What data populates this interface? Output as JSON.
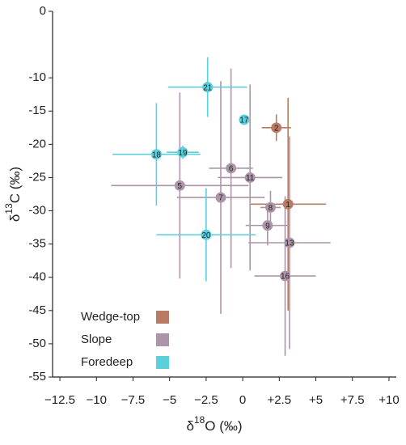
{
  "chart_data": {
    "type": "scatter",
    "xlabel": {
      "symbol": "δ",
      "superscript": "18",
      "text": "O (‰)"
    },
    "ylabel": {
      "symbol": "δ",
      "superscript": "13",
      "text": "C (‰)"
    },
    "xlim": [
      -13,
      10.5
    ],
    "ylim": [
      -55,
      0
    ],
    "xticks": [
      {
        "value": -12.5,
        "label": "−12.5"
      },
      {
        "value": -10,
        "label": "−10"
      },
      {
        "value": -7.5,
        "label": "−7.5"
      },
      {
        "value": -5,
        "label": "−5"
      },
      {
        "value": -2.5,
        "label": "−2.5"
      },
      0,
      {
        "value": 2.5,
        "label": "+2.5"
      },
      {
        "value": 5,
        "label": "+5"
      },
      {
        "value": 7.5,
        "label": "+7.5"
      },
      {
        "value": 10,
        "label": "+10"
      }
    ],
    "yticks": [
      0,
      -10,
      -15,
      -20,
      -25,
      -30,
      -35,
      -40,
      -45,
      -50,
      -55
    ],
    "legend": "lower left",
    "series": [
      {
        "name": "Wedge-top",
        "color": "#b97b64",
        "labels": [
          "1",
          "2"
        ],
        "x": [
          3.1,
          2.3
        ],
        "y": [
          -29.0,
          -17.5
        ],
        "xerr": [
          2.6,
          1.0
        ],
        "yerr": [
          16,
          2
        ]
      },
      {
        "name": "Slope",
        "color": "#ad95a9",
        "labels": [
          "6",
          "11",
          "5",
          "7",
          "8",
          "9",
          "13",
          "16"
        ],
        "x": [
          -0.8,
          0.5,
          -4.3,
          -1.5,
          1.9,
          1.7,
          3.2,
          2.9
        ],
        "y": [
          -23.6,
          -25.0,
          -26.2,
          -28.0,
          -29.5,
          -32.2,
          -34.8,
          -39.8
        ],
        "xerr": [
          1.5,
          2.2,
          4.7,
          3.0,
          0.7,
          1.5,
          2.8,
          2.1
        ],
        "yerr": [
          15,
          14,
          14,
          17.5,
          2.5,
          3,
          16,
          12
        ]
      },
      {
        "name": "Foredeep",
        "color": "#5ccfdc",
        "labels": [
          "21",
          "17",
          "19",
          "18",
          "20"
        ],
        "x": [
          -2.4,
          0.1,
          -4.1,
          -5.9,
          -2.5
        ],
        "y": [
          -11.4,
          -16.3,
          -21.2,
          -21.5,
          -33.6
        ],
        "xerr": [
          2.7,
          0,
          1.1,
          3.0,
          3.4
        ],
        "yerr": [
          4.5,
          0,
          1,
          7.7,
          7
        ]
      }
    ]
  }
}
